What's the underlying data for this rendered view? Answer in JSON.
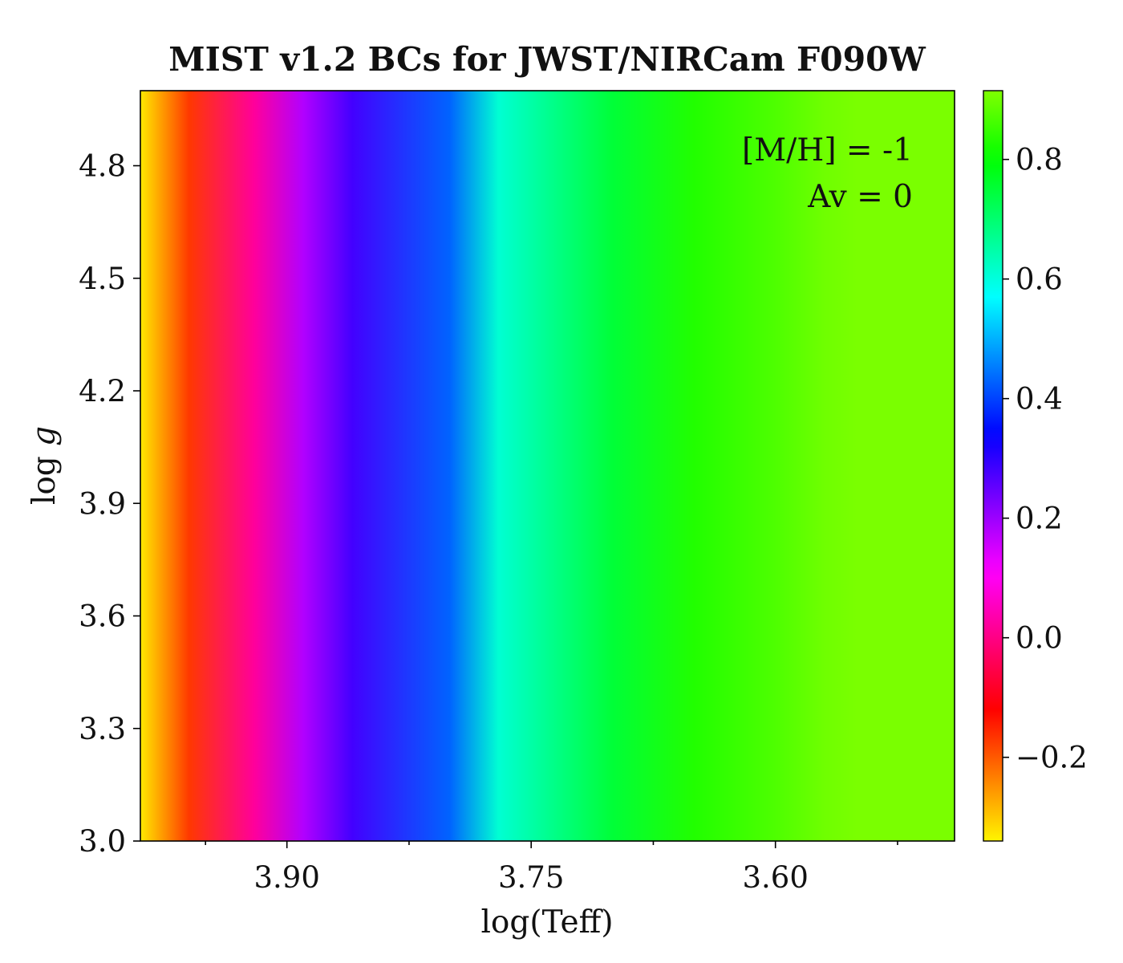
{
  "chart_data": {
    "type": "heatmap",
    "title": "MIST v1.2 BCs for JWST/NIRCam F090W",
    "xlabel": "log(Teff)",
    "ylabel": "log g",
    "x_inverted": true,
    "xlim": [
      3.99,
      3.49
    ],
    "ylim": [
      3.0,
      5.0
    ],
    "xticks": [
      3.9,
      3.75,
      3.6
    ],
    "xtick_labels": [
      "3.90",
      "3.75",
      "3.60"
    ],
    "xminor_ticks": [
      3.95,
      3.825,
      3.675,
      3.525
    ],
    "yticks": [
      3.0,
      3.3,
      3.6,
      3.9,
      4.2,
      4.5,
      4.8
    ],
    "ytick_labels": [
      "3.0",
      "3.3",
      "3.6",
      "3.9",
      "4.2",
      "4.5",
      "4.8"
    ],
    "annotations": [
      "[M/H] = -1",
      "Av = 0"
    ],
    "colorbar": {
      "colormap": "gist_rainbow",
      "range": [
        -0.34,
        0.915
      ],
      "ticks": [
        -0.2,
        0.0,
        0.2,
        0.4,
        0.6,
        0.8
      ],
      "tick_labels": [
        "−0.2",
        "0.0",
        "0.2",
        "0.4",
        "0.6",
        "0.8"
      ]
    },
    "profile_logTeff": [
      3.99,
      3.96,
      3.92,
      3.89,
      3.86,
      3.8,
      3.77,
      3.7,
      3.65,
      3.6,
      3.57,
      3.55,
      3.49
    ],
    "profile_BC": [
      -0.33,
      -0.17,
      0.02,
      0.18,
      0.28,
      0.43,
      0.61,
      0.75,
      0.83,
      0.87,
      0.9,
      0.91,
      0.91
    ]
  }
}
